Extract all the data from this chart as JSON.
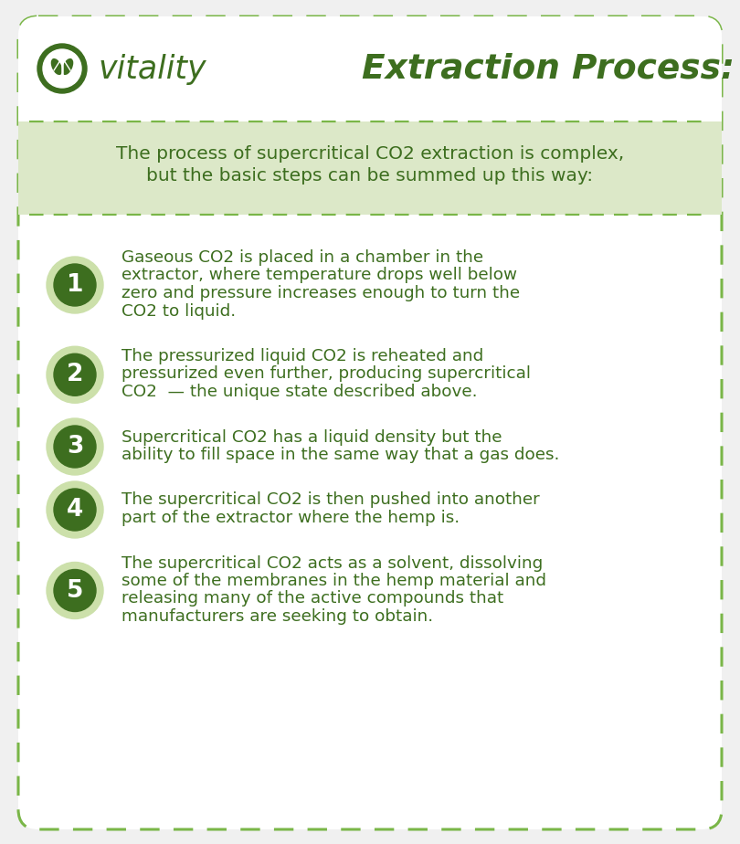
{
  "bg_color": "#ffffff",
  "border_color": "#7ab648",
  "outer_bg": "#f0f0f0",
  "title_text": "Extraction Process:",
  "title_color": "#3d6e1f",
  "brand_text": "vitality",
  "brand_color": "#3d6e1f",
  "intro_bg": "#dce8c8",
  "intro_text_line1": "The process of supercritical CO2 extraction is complex,",
  "intro_text_line2": "but the basic steps can be summed up this way:",
  "intro_color": "#3d6e1f",
  "circle_outer_color": "#cce0aa",
  "circle_inner_color": "#3d6e1f",
  "number_color": "#ffffff",
  "text_color": "#3d6e1f",
  "steps": [
    {
      "number": "1",
      "lines": [
        "Gaseous CO2 is placed in a chamber in the",
        "extractor, where temperature drops well below",
        "zero and pressure increases enough to turn the",
        "CO2 to liquid."
      ]
    },
    {
      "number": "2",
      "lines": [
        "The pressurized liquid CO2 is reheated and",
        "pressurized even further, producing supercritical",
        "CO2  — the unique state described above."
      ]
    },
    {
      "number": "3",
      "lines": [
        "Supercritical CO2 has a liquid density but the",
        "ability to fill space in the same way that a gas does."
      ]
    },
    {
      "number": "4",
      "lines": [
        "The supercritical CO2 is then pushed into another",
        "part of the extractor where the hemp is."
      ]
    },
    {
      "number": "5",
      "lines": [
        "The supercritical CO2 acts as a solvent, dissolving",
        "some of the membranes in the hemp material and",
        "releasing many of the active compounds that",
        "manufacturers are seeking to obtain."
      ]
    }
  ]
}
